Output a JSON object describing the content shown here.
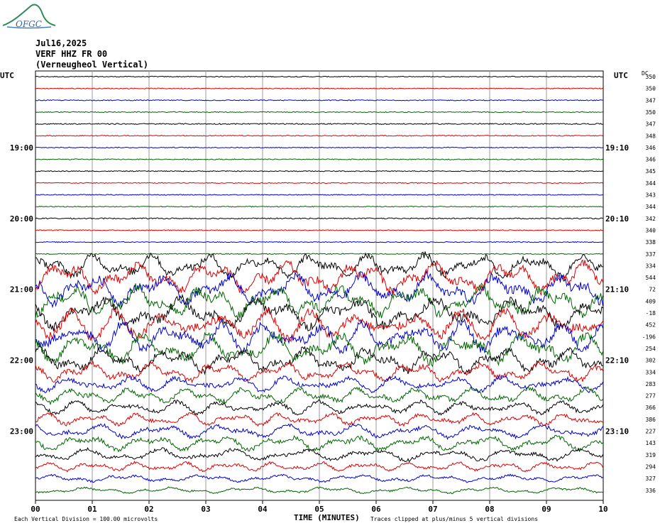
{
  "logo": {
    "text": "OFGC",
    "color": "#2e8b57"
  },
  "header": {
    "date": "Jul16,2025",
    "station": "VERF HHZ FR 00",
    "location": "(Verneugheol Vertical)"
  },
  "utc_left": "UTC",
  "utc_right": "UTC",
  "dc_label": "DC",
  "footer": {
    "scale": "Each Vertical Division =  100.00 microvolts",
    "clip": "Traces clipped at plus/minus 5 vertical divisions"
  },
  "chart_data": {
    "type": "line",
    "xlabel": "TIME (MINUTES)",
    "xlim": [
      0,
      10
    ],
    "x_ticks": [
      "00",
      "01",
      "02",
      "03",
      "04",
      "05",
      "06",
      "07",
      "08",
      "09",
      "10"
    ],
    "trace_colors": [
      "#000000",
      "#dd0000",
      "#0000cc",
      "#006600"
    ],
    "hour_labels_left": [
      {
        "row": 6,
        "label": "19:00"
      },
      {
        "row": 12,
        "label": "20:00"
      },
      {
        "row": 18,
        "label": "21:00"
      },
      {
        "row": 24,
        "label": "22:00"
      },
      {
        "row": 30,
        "label": "23:00"
      }
    ],
    "hour_labels_right": [
      {
        "row": 6,
        "label": "19:10"
      },
      {
        "row": 12,
        "label": "20:10"
      },
      {
        "row": 18,
        "label": "21:10"
      },
      {
        "row": 24,
        "label": "22:10"
      },
      {
        "row": 30,
        "label": "23:10"
      }
    ],
    "dc_offsets": [
      "350",
      "350",
      "347",
      "350",
      "347",
      "348",
      "346",
      "346",
      "345",
      "344",
      "343",
      "344",
      "342",
      "340",
      "338",
      "337",
      "334",
      "544",
      "72",
      "409",
      "-18",
      "452",
      "-196",
      "254",
      "302",
      "334",
      "283",
      "277",
      "366",
      "386",
      "227",
      "143",
      "319",
      "294",
      "327",
      "336"
    ],
    "trace_activity": [
      0.4,
      0.4,
      0.4,
      0.4,
      0.5,
      0.4,
      0.4,
      0.4,
      0.4,
      0.4,
      0.4,
      0.4,
      0.5,
      0.4,
      0.4,
      0.4,
      4,
      5,
      5,
      5,
      5,
      5,
      5,
      5,
      4,
      3,
      2.5,
      2.5,
      2.2,
      2.0,
      2.3,
      2.5,
      2.0,
      1.5,
      1.2,
      1.0
    ]
  }
}
